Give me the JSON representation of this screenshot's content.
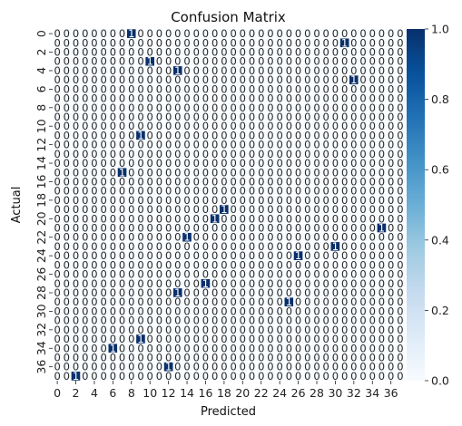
{
  "chart_data": {
    "type": "heatmap",
    "title": "Confusion Matrix",
    "xlabel": "Predicted",
    "ylabel": "Actual",
    "n_classes": 38,
    "x_tick_labels": [
      "0",
      "2",
      "4",
      "6",
      "8",
      "10",
      "12",
      "14",
      "16",
      "18",
      "20",
      "22",
      "24",
      "26",
      "28",
      "30",
      "32",
      "34",
      "36"
    ],
    "y_tick_labels": [
      "0",
      "2",
      "4",
      "6",
      "8",
      "10",
      "12",
      "14",
      "16",
      "18",
      "20",
      "22",
      "24",
      "26",
      "28",
      "30",
      "32",
      "34",
      "36"
    ],
    "cell_annotation_default": "0",
    "cell_annotation_nonzero": "1",
    "nonzero_cells": [
      {
        "actual": 0,
        "predicted": 8,
        "value": 1
      },
      {
        "actual": 1,
        "predicted": 31,
        "value": 1
      },
      {
        "actual": 3,
        "predicted": 10,
        "value": 1
      },
      {
        "actual": 4,
        "predicted": 13,
        "value": 1
      },
      {
        "actual": 5,
        "predicted": 32,
        "value": 1
      },
      {
        "actual": 11,
        "predicted": 9,
        "value": 1
      },
      {
        "actual": 15,
        "predicted": 7,
        "value": 1
      },
      {
        "actual": 19,
        "predicted": 18,
        "value": 1
      },
      {
        "actual": 20,
        "predicted": 17,
        "value": 1
      },
      {
        "actual": 21,
        "predicted": 35,
        "value": 1
      },
      {
        "actual": 22,
        "predicted": 14,
        "value": 1
      },
      {
        "actual": 23,
        "predicted": 30,
        "value": 1
      },
      {
        "actual": 24,
        "predicted": 26,
        "value": 1
      },
      {
        "actual": 27,
        "predicted": 16,
        "value": 1
      },
      {
        "actual": 28,
        "predicted": 13,
        "value": 1
      },
      {
        "actual": 29,
        "predicted": 25,
        "value": 1
      },
      {
        "actual": 33,
        "predicted": 9,
        "value": 1
      },
      {
        "actual": 34,
        "predicted": 6,
        "value": 1
      },
      {
        "actual": 36,
        "predicted": 12,
        "value": 1
      },
      {
        "actual": 37,
        "predicted": 2,
        "value": 1
      }
    ],
    "value_range": [
      0,
      1
    ],
    "colorbar_ticks": [
      "0.0",
      "0.2",
      "0.4",
      "0.6",
      "0.8",
      "1.0"
    ],
    "colormap": "Blues",
    "colors": {
      "low": "#f7fbff",
      "high": "#08306b",
      "cell_border": "#ffffff"
    }
  }
}
